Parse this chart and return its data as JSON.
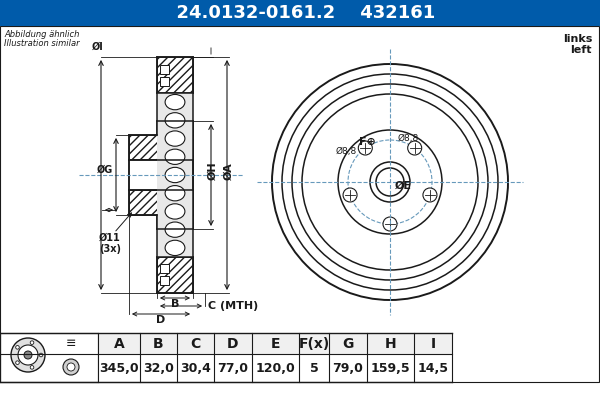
{
  "title_part": "24.0132-0161.2",
  "title_code": "432161",
  "title_bg": "#005baa",
  "title_fg": "#ffffff",
  "header_labels": [
    "A",
    "B",
    "C",
    "D",
    "E",
    "F(x)",
    "G",
    "H",
    "I"
  ],
  "values": [
    "345,0",
    "32,0",
    "30,4",
    "77,0",
    "120,0",
    "5",
    "79,0",
    "159,5",
    "14,5"
  ],
  "text_small1": "Abbildung ähnlich",
  "text_small2": "Illustration similar",
  "text_right1": "links",
  "text_right2": "left",
  "line_color": "#1a1a1a",
  "dashed_color": "#6699bb"
}
